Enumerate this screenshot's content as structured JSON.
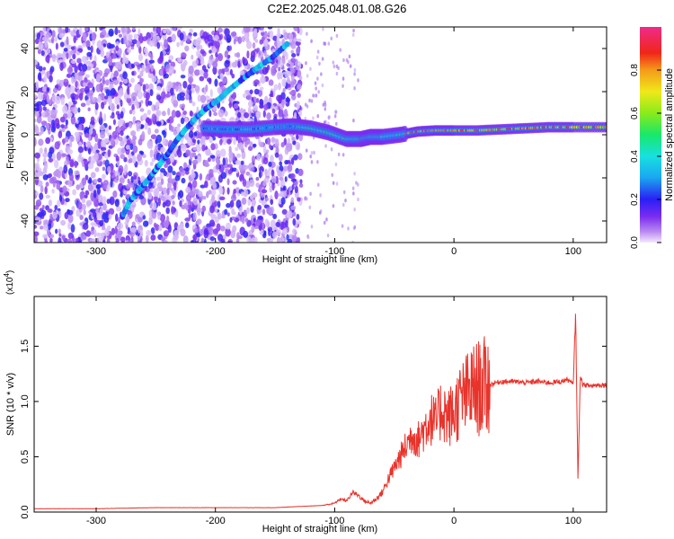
{
  "title": "C2E2.2025.048.01.08.G26",
  "colors": {
    "snr_line": "#e8332b",
    "axis": "#000000"
  },
  "chart_data": [
    {
      "type": "heatmap",
      "xlabel": "Height of straight line (km)",
      "ylabel": "Frequency (Hz)",
      "xlim": [
        -352,
        128
      ],
      "ylim": [
        -50,
        50
      ],
      "xticks": [
        -300,
        -200,
        -100,
        0,
        100
      ],
      "yticks": [
        -40,
        -20,
        0,
        20,
        40
      ],
      "colorbar": {
        "label": "Normalized spectral amplitude",
        "range": [
          0,
          1
        ],
        "ticks": [
          0.0,
          0.2,
          0.4,
          0.6,
          0.8
        ],
        "colormap": "rainbow (purple-blue-cyan-green-yellow-red-magenta)"
      },
      "features": [
        {
          "name": "diagonal track",
          "points": [
            [
              -278,
              -38
            ],
            [
              -272,
              -31
            ],
            [
              -263,
              -25
            ],
            [
              -255,
              -20
            ],
            [
              -247,
              -14
            ],
            [
              -240,
              -9
            ],
            [
              -233,
              -3
            ],
            [
              -226,
              2
            ],
            [
              -216,
              8
            ],
            [
              -208,
              12
            ],
            [
              -198,
              16
            ],
            [
              -188,
              21
            ],
            [
              -177,
              26
            ],
            [
              -165,
              31
            ],
            [
              -152,
              36
            ],
            [
              -140,
              42
            ]
          ]
        },
        {
          "name": "main horizontal band",
          "points": [
            [
              -210,
              3
            ],
            [
              -190,
              2.5
            ],
            [
              -170,
              2.5
            ],
            [
              -150,
              3.5
            ],
            [
              -135,
              4
            ],
            [
              -120,
              3
            ],
            [
              -105,
              1
            ],
            [
              -90,
              -2
            ],
            [
              -78,
              -2
            ],
            [
              -70,
              -1
            ],
            [
              -60,
              -1
            ],
            [
              -45,
              0
            ],
            [
              -30,
              1.5
            ],
            [
              -15,
              2
            ],
            [
              0,
              2
            ],
            [
              20,
              2
            ],
            [
              40,
              2.5
            ],
            [
              60,
              3
            ],
            [
              80,
              3.5
            ],
            [
              100,
              3.5
            ],
            [
              128,
              3.5
            ]
          ]
        }
      ]
    },
    {
      "type": "line",
      "xlabel": "Height of straight line (km)",
      "ylabel": "SNR (10 * v/v)",
      "multiplier_label": "(x10",
      "multiplier_exp": "4",
      "multiplier_close": ")",
      "xlim": [
        -352,
        128
      ],
      "ylim": [
        0,
        1.95
      ],
      "xticks": [
        -300,
        -200,
        -100,
        0,
        100
      ],
      "yticks": [
        0.0,
        0.5,
        1.0,
        1.5
      ],
      "series": [
        {
          "x": [
            -352,
            -300,
            -250,
            -200,
            -150,
            -130,
            -110,
            -100,
            -95,
            -90,
            -85,
            -80,
            -75,
            -70,
            -65,
            -60,
            -55,
            -50,
            -45,
            -40,
            -35,
            -30,
            -25,
            -20,
            -15,
            -10,
            -5,
            0,
            5,
            10,
            15,
            20,
            25,
            30,
            35,
            40,
            50,
            60,
            70,
            80,
            90,
            95,
            100,
            102,
            104,
            106,
            108,
            110,
            115,
            120,
            128
          ],
          "y": [
            0.03,
            0.03,
            0.04,
            0.04,
            0.04,
            0.05,
            0.06,
            0.08,
            0.12,
            0.1,
            0.18,
            0.15,
            0.1,
            0.08,
            0.12,
            0.18,
            0.3,
            0.4,
            0.5,
            0.6,
            0.7,
            0.65,
            0.75,
            0.85,
            0.8,
            0.95,
            0.85,
            0.9,
            1.0,
            1.05,
            1.1,
            1.12,
            1.13,
            1.15,
            1.17,
            1.18,
            1.18,
            1.17,
            1.18,
            1.17,
            1.18,
            1.2,
            1.15,
            1.8,
            0.3,
            1.25,
            1.15,
            1.15,
            1.14,
            1.15,
            1.15
          ]
        }
      ]
    }
  ]
}
